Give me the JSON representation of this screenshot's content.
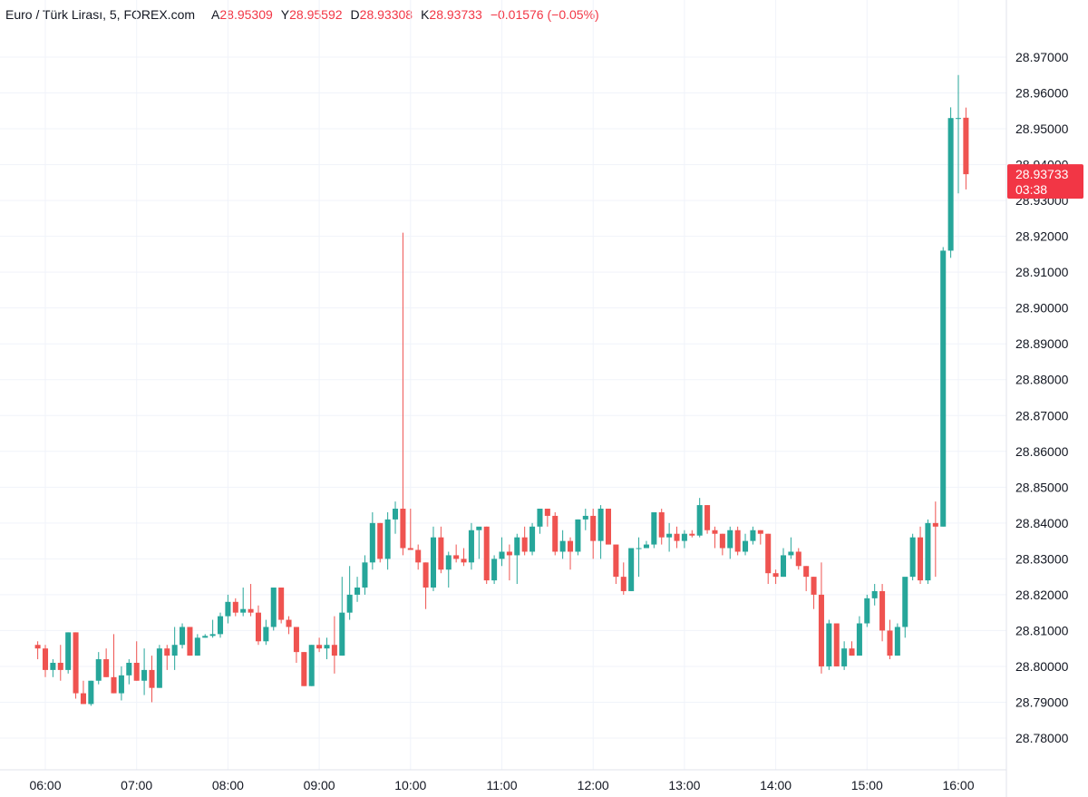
{
  "legend": {
    "symbol": "Euro / Türk Lirası, 5, FOREX.com",
    "open_label": "A",
    "open": "28.95309",
    "high_label": "Y",
    "high": "28.95592",
    "low_label": "D",
    "low": "28.93308",
    "close_label": "K",
    "close": "28.93733",
    "change": "−0.01576 (−0.05%)"
  },
  "price_badge": {
    "price": "28.93733",
    "countdown": "03:38"
  },
  "colors": {
    "up": "#26a69a",
    "down": "#ef5350",
    "grid": "#f0f3fa",
    "text": "#131722",
    "badge": "#f23645"
  },
  "chart_data": {
    "type": "candlestick",
    "interval": "5",
    "ylim": [
      28.772,
      28.975
    ],
    "y_ticks": [
      "28.97000",
      "28.96000",
      "28.95000",
      "28.94000",
      "28.93000",
      "28.92000",
      "28.91000",
      "28.90000",
      "28.89000",
      "28.88000",
      "28.87000",
      "28.86000",
      "28.85000",
      "28.84000",
      "28.83000",
      "28.82000",
      "28.81000",
      "28.80000",
      "28.79000",
      "28.78000"
    ],
    "x_ticks": [
      "06:00",
      "07:00",
      "08:00",
      "09:00",
      "10:00",
      "11:00",
      "12:00",
      "13:00",
      "14:00",
      "15:00",
      "16:00"
    ],
    "x_start": "05:55",
    "bar_minutes": 5,
    "candles": [
      {
        "o": 28.806,
        "h": 28.807,
        "l": 28.802,
        "c": 28.805
      },
      {
        "o": 28.805,
        "h": 28.806,
        "l": 28.797,
        "c": 28.799
      },
      {
        "o": 28.799,
        "h": 28.802,
        "l": 28.797,
        "c": 28.801
      },
      {
        "o": 28.801,
        "h": 28.806,
        "l": 28.796,
        "c": 28.799
      },
      {
        "o": 28.799,
        "h": 28.8095,
        "l": 28.798,
        "c": 28.8095
      },
      {
        "o": 28.8095,
        "h": 28.8095,
        "l": 28.791,
        "c": 28.7925
      },
      {
        "o": 28.7925,
        "h": 28.796,
        "l": 28.7895,
        "c": 28.7895
      },
      {
        "o": 28.7895,
        "h": 28.796,
        "l": 28.789,
        "c": 28.796
      },
      {
        "o": 28.796,
        "h": 28.804,
        "l": 28.795,
        "c": 28.802
      },
      {
        "o": 28.802,
        "h": 28.805,
        "l": 28.797,
        "c": 28.797
      },
      {
        "o": 28.797,
        "h": 28.809,
        "l": 28.7925,
        "c": 28.7925
      },
      {
        "o": 28.7925,
        "h": 28.8,
        "l": 28.7905,
        "c": 28.7975
      },
      {
        "o": 28.7975,
        "h": 28.802,
        "l": 28.795,
        "c": 28.801
      },
      {
        "o": 28.801,
        "h": 28.807,
        "l": 28.796,
        "c": 28.796
      },
      {
        "o": 28.796,
        "h": 28.805,
        "l": 28.792,
        "c": 28.799
      },
      {
        "o": 28.799,
        "h": 28.803,
        "l": 28.79,
        "c": 28.794
      },
      {
        "o": 28.794,
        "h": 28.806,
        "l": 28.794,
        "c": 28.805
      },
      {
        "o": 28.805,
        "h": 28.806,
        "l": 28.799,
        "c": 28.803
      },
      {
        "o": 28.803,
        "h": 28.811,
        "l": 28.799,
        "c": 28.806
      },
      {
        "o": 28.806,
        "h": 28.812,
        "l": 28.805,
        "c": 28.811
      },
      {
        "o": 28.811,
        "h": 28.811,
        "l": 28.803,
        "c": 28.803
      },
      {
        "o": 28.803,
        "h": 28.809,
        "l": 28.803,
        "c": 28.808
      },
      {
        "o": 28.808,
        "h": 28.809,
        "l": 28.808,
        "c": 28.8085
      },
      {
        "o": 28.8085,
        "h": 28.813,
        "l": 28.808,
        "c": 28.809
      },
      {
        "o": 28.809,
        "h": 28.815,
        "l": 28.808,
        "c": 28.814
      },
      {
        "o": 28.814,
        "h": 28.82,
        "l": 28.812,
        "c": 28.818
      },
      {
        "o": 28.818,
        "h": 28.819,
        "l": 28.814,
        "c": 28.815
      },
      {
        "o": 28.815,
        "h": 28.822,
        "l": 28.814,
        "c": 28.816
      },
      {
        "o": 28.816,
        "h": 28.823,
        "l": 28.814,
        "c": 28.815
      },
      {
        "o": 28.815,
        "h": 28.817,
        "l": 28.806,
        "c": 28.807
      },
      {
        "o": 28.807,
        "h": 28.813,
        "l": 28.806,
        "c": 28.811
      },
      {
        "o": 28.811,
        "h": 28.822,
        "l": 28.81,
        "c": 28.822
      },
      {
        "o": 28.822,
        "h": 28.822,
        "l": 28.812,
        "c": 28.813
      },
      {
        "o": 28.813,
        "h": 28.814,
        "l": 28.809,
        "c": 28.811
      },
      {
        "o": 28.811,
        "h": 28.811,
        "l": 28.801,
        "c": 28.804
      },
      {
        "o": 28.804,
        "h": 28.804,
        "l": 28.7945,
        "c": 28.7945
      },
      {
        "o": 28.7945,
        "h": 28.806,
        "l": 28.7945,
        "c": 28.806
      },
      {
        "o": 28.806,
        "h": 28.808,
        "l": 28.804,
        "c": 28.805
      },
      {
        "o": 28.805,
        "h": 28.808,
        "l": 28.802,
        "c": 28.806
      },
      {
        "o": 28.806,
        "h": 28.814,
        "l": 28.798,
        "c": 28.803
      },
      {
        "o": 28.803,
        "h": 28.825,
        "l": 28.803,
        "c": 28.815
      },
      {
        "o": 28.815,
        "h": 28.828,
        "l": 28.813,
        "c": 28.82
      },
      {
        "o": 28.82,
        "h": 28.825,
        "l": 28.818,
        "c": 28.822
      },
      {
        "o": 28.822,
        "h": 28.831,
        "l": 28.82,
        "c": 28.829
      },
      {
        "o": 28.829,
        "h": 28.843,
        "l": 28.827,
        "c": 28.84
      },
      {
        "o": 28.84,
        "h": 28.84,
        "l": 28.829,
        "c": 28.83
      },
      {
        "o": 28.83,
        "h": 28.843,
        "l": 28.827,
        "c": 28.841
      },
      {
        "o": 28.841,
        "h": 28.846,
        "l": 28.837,
        "c": 28.844
      },
      {
        "o": 28.844,
        "h": 28.921,
        "l": 28.831,
        "c": 28.833
      },
      {
        "o": 28.833,
        "h": 28.844,
        "l": 28.833,
        "c": 28.8325
      },
      {
        "o": 28.8325,
        "h": 28.834,
        "l": 28.827,
        "c": 28.829
      },
      {
        "o": 28.829,
        "h": 28.829,
        "l": 28.816,
        "c": 28.822
      },
      {
        "o": 28.822,
        "h": 28.839,
        "l": 28.821,
        "c": 28.836
      },
      {
        "o": 28.836,
        "h": 28.839,
        "l": 28.826,
        "c": 28.827
      },
      {
        "o": 28.827,
        "h": 28.832,
        "l": 28.822,
        "c": 28.831
      },
      {
        "o": 28.831,
        "h": 28.834,
        "l": 28.829,
        "c": 28.83
      },
      {
        "o": 28.83,
        "h": 28.833,
        "l": 28.828,
        "c": 28.829
      },
      {
        "o": 28.829,
        "h": 28.84,
        "l": 28.827,
        "c": 28.838
      },
      {
        "o": 28.838,
        "h": 28.838,
        "l": 28.83,
        "c": 28.839
      },
      {
        "o": 28.839,
        "h": 28.839,
        "l": 28.823,
        "c": 28.824
      },
      {
        "o": 28.824,
        "h": 28.831,
        "l": 28.823,
        "c": 28.83
      },
      {
        "o": 28.83,
        "h": 28.836,
        "l": 28.828,
        "c": 28.832
      },
      {
        "o": 28.832,
        "h": 28.834,
        "l": 28.824,
        "c": 28.831
      },
      {
        "o": 28.831,
        "h": 28.837,
        "l": 28.823,
        "c": 28.836
      },
      {
        "o": 28.836,
        "h": 28.839,
        "l": 28.831,
        "c": 28.832
      },
      {
        "o": 28.832,
        "h": 28.84,
        "l": 28.831,
        "c": 28.839
      },
      {
        "o": 28.839,
        "h": 28.844,
        "l": 28.837,
        "c": 28.844
      },
      {
        "o": 28.844,
        "h": 28.844,
        "l": 28.839,
        "c": 28.842
      },
      {
        "o": 28.842,
        "h": 28.843,
        "l": 28.831,
        "c": 28.832
      },
      {
        "o": 28.832,
        "h": 28.838,
        "l": 28.83,
        "c": 28.835
      },
      {
        "o": 28.835,
        "h": 28.836,
        "l": 28.827,
        "c": 28.832
      },
      {
        "o": 28.832,
        "h": 28.841,
        "l": 28.831,
        "c": 28.841
      },
      {
        "o": 28.841,
        "h": 28.844,
        "l": 28.838,
        "c": 28.842
      },
      {
        "o": 28.842,
        "h": 28.844,
        "l": 28.83,
        "c": 28.835
      },
      {
        "o": 28.835,
        "h": 28.845,
        "l": 28.83,
        "c": 28.844
      },
      {
        "o": 28.844,
        "h": 28.844,
        "l": 28.834,
        "c": 28.834
      },
      {
        "o": 28.834,
        "h": 28.834,
        "l": 28.823,
        "c": 28.825
      },
      {
        "o": 28.825,
        "h": 28.829,
        "l": 28.82,
        "c": 28.821
      },
      {
        "o": 28.821,
        "h": 28.833,
        "l": 28.821,
        "c": 28.833
      },
      {
        "o": 28.833,
        "h": 28.836,
        "l": 28.825,
        "c": 28.833
      },
      {
        "o": 28.833,
        "h": 28.835,
        "l": 28.833,
        "c": 28.834
      },
      {
        "o": 28.834,
        "h": 28.843,
        "l": 28.833,
        "c": 28.843
      },
      {
        "o": 28.843,
        "h": 28.844,
        "l": 28.834,
        "c": 28.836
      },
      {
        "o": 28.836,
        "h": 28.84,
        "l": 28.832,
        "c": 28.837
      },
      {
        "o": 28.837,
        "h": 28.839,
        "l": 28.833,
        "c": 28.835
      },
      {
        "o": 28.835,
        "h": 28.838,
        "l": 28.833,
        "c": 28.837
      },
      {
        "o": 28.837,
        "h": 28.838,
        "l": 28.836,
        "c": 28.8365
      },
      {
        "o": 28.8365,
        "h": 28.847,
        "l": 28.836,
        "c": 28.845
      },
      {
        "o": 28.845,
        "h": 28.845,
        "l": 28.837,
        "c": 28.838
      },
      {
        "o": 28.838,
        "h": 28.839,
        "l": 28.833,
        "c": 28.837
      },
      {
        "o": 28.837,
        "h": 28.837,
        "l": 28.831,
        "c": 28.833
      },
      {
        "o": 28.833,
        "h": 28.839,
        "l": 28.83,
        "c": 28.838
      },
      {
        "o": 28.838,
        "h": 28.839,
        "l": 28.831,
        "c": 28.832
      },
      {
        "o": 28.832,
        "h": 28.837,
        "l": 28.831,
        "c": 28.835
      },
      {
        "o": 28.835,
        "h": 28.839,
        "l": 28.834,
        "c": 28.838
      },
      {
        "o": 28.838,
        "h": 28.838,
        "l": 28.834,
        "c": 28.837
      },
      {
        "o": 28.837,
        "h": 28.837,
        "l": 28.823,
        "c": 28.826
      },
      {
        "o": 28.826,
        "h": 28.827,
        "l": 28.823,
        "c": 28.825
      },
      {
        "o": 28.825,
        "h": 28.833,
        "l": 28.825,
        "c": 28.831
      },
      {
        "o": 28.831,
        "h": 28.836,
        "l": 28.83,
        "c": 28.832
      },
      {
        "o": 28.832,
        "h": 28.833,
        "l": 28.827,
        "c": 28.828
      },
      {
        "o": 28.828,
        "h": 28.828,
        "l": 28.821,
        "c": 28.825
      },
      {
        "o": 28.825,
        "h": 28.825,
        "l": 28.816,
        "c": 28.82
      },
      {
        "o": 28.82,
        "h": 28.829,
        "l": 28.798,
        "c": 28.8
      },
      {
        "o": 28.8,
        "h": 28.813,
        "l": 28.799,
        "c": 28.812
      },
      {
        "o": 28.812,
        "h": 28.812,
        "l": 28.8,
        "c": 28.8
      },
      {
        "o": 28.8,
        "h": 28.807,
        "l": 28.799,
        "c": 28.805
      },
      {
        "o": 28.805,
        "h": 28.807,
        "l": 28.803,
        "c": 28.803
      },
      {
        "o": 28.803,
        "h": 28.814,
        "l": 28.803,
        "c": 28.812
      },
      {
        "o": 28.812,
        "h": 28.82,
        "l": 28.811,
        "c": 28.819
      },
      {
        "o": 28.819,
        "h": 28.823,
        "l": 28.817,
        "c": 28.821
      },
      {
        "o": 28.821,
        "h": 28.823,
        "l": 28.807,
        "c": 28.81
      },
      {
        "o": 28.81,
        "h": 28.813,
        "l": 28.802,
        "c": 28.803
      },
      {
        "o": 28.803,
        "h": 28.812,
        "l": 28.803,
        "c": 28.811
      },
      {
        "o": 28.811,
        "h": 28.823,
        "l": 28.808,
        "c": 28.825
      },
      {
        "o": 28.825,
        "h": 28.837,
        "l": 28.824,
        "c": 28.836
      },
      {
        "o": 28.836,
        "h": 28.839,
        "l": 28.823,
        "c": 28.824
      },
      {
        "o": 28.824,
        "h": 28.841,
        "l": 28.823,
        "c": 28.84
      },
      {
        "o": 28.84,
        "h": 28.846,
        "l": 28.825,
        "c": 28.839
      },
      {
        "o": 28.839,
        "h": 28.917,
        "l": 28.839,
        "c": 28.916
      },
      {
        "o": 28.916,
        "h": 28.956,
        "l": 28.914,
        "c": 28.953
      },
      {
        "o": 28.953,
        "h": 28.965,
        "l": 28.932,
        "c": 28.953
      },
      {
        "o": 28.95309,
        "h": 28.95592,
        "l": 28.93308,
        "c": 28.93733
      }
    ]
  }
}
